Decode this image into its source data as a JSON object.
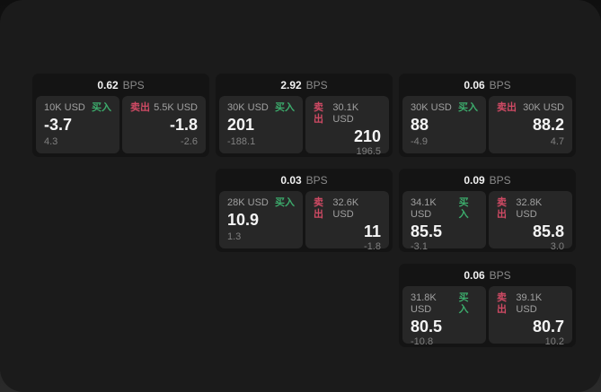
{
  "labels": {
    "bps_unit": "BPS",
    "buy": "买入",
    "sell": "卖出"
  },
  "colors": {
    "buy": "#3cab6c",
    "sell": "#cf4a64",
    "surface": "#1b1b1b",
    "card": "#141414",
    "tile": "#272727"
  },
  "cards": [
    {
      "bps": "0.62",
      "row": 1,
      "col": 1,
      "buy": {
        "amount": "10K USD",
        "value": "-3.7",
        "sub": "4.3"
      },
      "sell": {
        "amount": "5.5K USD",
        "value": "-1.8",
        "sub": "-2.6"
      }
    },
    {
      "bps": "2.92",
      "row": 1,
      "col": 2,
      "buy": {
        "amount": "30K USD",
        "value": "201",
        "sub": "-188.1"
      },
      "sell": {
        "amount": "30.1K USD",
        "value": "210",
        "sub": "196.5"
      }
    },
    {
      "bps": "0.06",
      "row": 1,
      "col": 3,
      "buy": {
        "amount": "30K USD",
        "value": "88",
        "sub": "-4.9"
      },
      "sell": {
        "amount": "30K USD",
        "value": "88.2",
        "sub": "4.7"
      }
    },
    {
      "bps": "0.03",
      "row": 2,
      "col": 2,
      "buy": {
        "amount": "28K USD",
        "value": "10.9",
        "sub": "1.3"
      },
      "sell": {
        "amount": "32.6K USD",
        "value": "11",
        "sub": "-1.8"
      }
    },
    {
      "bps": "0.09",
      "row": 2,
      "col": 3,
      "buy": {
        "amount": "34.1K USD",
        "value": "85.5",
        "sub": "-3.1"
      },
      "sell": {
        "amount": "32.8K USD",
        "value": "85.8",
        "sub": "3.0"
      }
    },
    {
      "bps": "0.06",
      "row": 3,
      "col": 3,
      "buy": {
        "amount": "31.8K USD",
        "value": "80.5",
        "sub": "-10.8"
      },
      "sell": {
        "amount": "39.1K USD",
        "value": "80.7",
        "sub": "10.2"
      }
    }
  ]
}
